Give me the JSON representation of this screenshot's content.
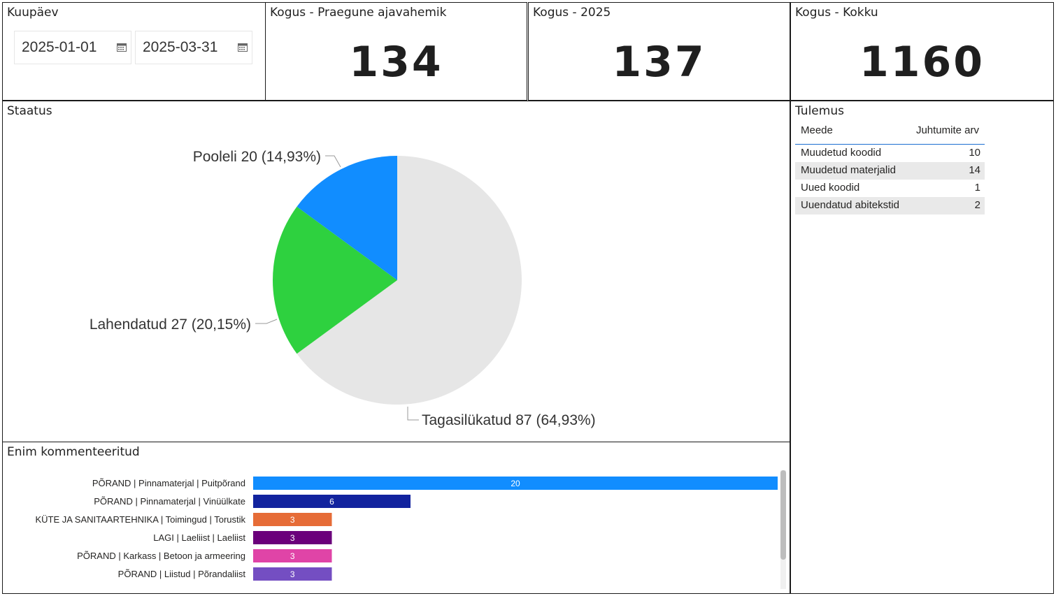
{
  "date_filter": {
    "title": "Kuupäev",
    "start": "2025-01-01",
    "end": "2025-03-31"
  },
  "kpis": [
    {
      "title": "Kogus - Praegune ajavahemik",
      "value": "134"
    },
    {
      "title": "Kogus - 2025",
      "value": "137"
    },
    {
      "title": "Kogus - Kokku",
      "value": "1160"
    }
  ],
  "status": {
    "title": "Staatus",
    "chart_data": {
      "type": "pie",
      "title": "Staatus",
      "slices": [
        {
          "name": "Tagasilükatud",
          "value": 87,
          "pct": "64,93%",
          "label": "Tagasilükatud 87 (64,93%)",
          "color": "#e6e6e6"
        },
        {
          "name": "Lahendatud",
          "value": 27,
          "pct": "20,15%",
          "label": "Lahendatud 27 (20,15%)",
          "color": "#2ed13f"
        },
        {
          "name": "Pooleli",
          "value": 20,
          "pct": "14,93%",
          "label": "Pooleli 20 (14,93%)",
          "color": "#118dff"
        }
      ]
    }
  },
  "result": {
    "title": "Tulemus",
    "columns": [
      "Meede",
      "Juhtumite arv"
    ],
    "rows": [
      {
        "name": "Muudetud koodid",
        "count": "10"
      },
      {
        "name": "Muudetud materjalid",
        "count": "14"
      },
      {
        "name": "Uued koodid",
        "count": "1"
      },
      {
        "name": "Uuendatud abitekstid",
        "count": "2"
      }
    ]
  },
  "most_commented": {
    "title": "Enim kommenteeritud",
    "chart_data": {
      "type": "bar",
      "orientation": "horizontal",
      "title": "Enim kommenteeritud",
      "categories": [
        "PÕRAND | Pinnamaterjal | Puitpõrand",
        "PÕRAND | Pinnamaterjal | Vinüülkate",
        "KÜTE JA SANITAARTEHNIKA | Toimingud | Torustik",
        "LAGI | Laeliist | Laeliist",
        "PÕRAND | Karkass | Betoon ja armeering",
        "PÕRAND | Liistud | Põrandaliist"
      ],
      "values": [
        20,
        6,
        3,
        3,
        3,
        3
      ],
      "colors": [
        "#118dff",
        "#12239e",
        "#e66c37",
        "#6b007b",
        "#e044a7",
        "#744ec2"
      ],
      "xlim": [
        0,
        20
      ]
    }
  }
}
